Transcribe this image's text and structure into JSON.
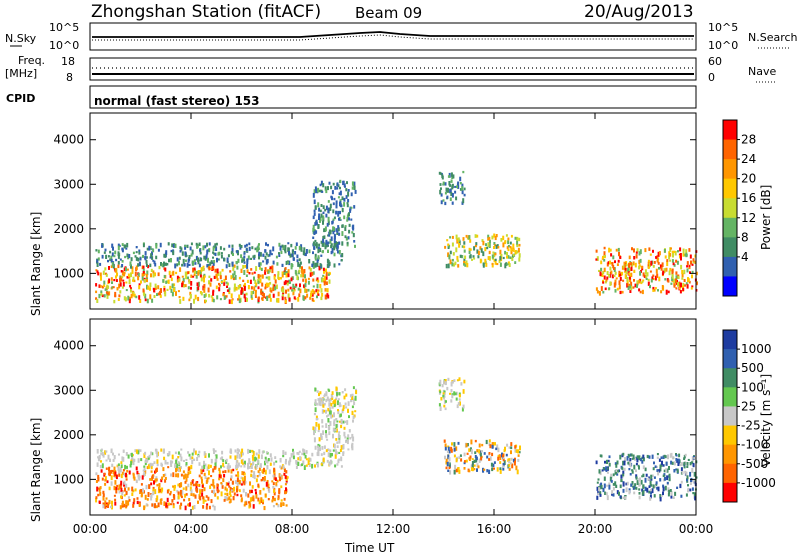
{
  "header": {
    "station": "Zhongshan Station (fitACF)",
    "beam": "Beam 09",
    "date": "20/Aug/2013"
  },
  "nsky_panel": {
    "left_label": "N.Sky",
    "right_label": "N.Search",
    "ticks_left": [
      "10^5",
      "10^0"
    ],
    "ticks_right": [
      "10^5",
      "10^0"
    ]
  },
  "freq_panel": {
    "left_label_1": "Freq.",
    "left_label_2": "[MHz]",
    "right_label": "Nave",
    "ticks_left": [
      "18",
      "8"
    ],
    "ticks_right": [
      "60",
      "0"
    ]
  },
  "cpid": {
    "label": "CPID",
    "text": "normal (fast stereo) 153"
  },
  "power_colorbar": {
    "label": "Power [dB]",
    "ticks": [
      "28",
      "24",
      "20",
      "16",
      "12",
      "8",
      "4"
    ],
    "colors": [
      "#ff0000",
      "#ff6400",
      "#ff9600",
      "#ffc800",
      "#c8dc32",
      "#64b464",
      "#408c64",
      "#3060b0",
      "#0000ff"
    ]
  },
  "velocity_colorbar": {
    "label": "Velocity [m s⁻¹]",
    "ticks": [
      "1000",
      "500",
      "100",
      "25",
      "-25",
      "-100",
      "-500",
      "-1000"
    ],
    "colors": [
      "#1e3ca0",
      "#3060b0",
      "#408c64",
      "#64c850",
      "#c8c8c8",
      "#ffc800",
      "#ff9600",
      "#ff6400",
      "#ff0000"
    ]
  },
  "chart_data": [
    {
      "type": "heatmap",
      "title": "Power",
      "xlabel": "Time UT",
      "ylabel": "Slant Range [km]",
      "x_ticks": [
        "00:00",
        "04:00",
        "08:00",
        "12:00",
        "16:00",
        "20:00",
        "00:00"
      ],
      "y_ticks": [
        1000,
        2000,
        3000,
        4000
      ],
      "ylim": [
        200,
        4600
      ],
      "xlim_hours": [
        0,
        24
      ],
      "regions": [
        {
          "t0": 0.2,
          "t1": 9.5,
          "r0": 400,
          "r1": 1200,
          "level": "high"
        },
        {
          "t0": 0.2,
          "t1": 10.0,
          "r0": 1200,
          "r1": 1700,
          "level": "low"
        },
        {
          "t0": 8.8,
          "t1": 10.5,
          "r0": 1600,
          "r1": 3100,
          "level": "low"
        },
        {
          "t0": 13.8,
          "t1": 14.8,
          "r0": 2600,
          "r1": 3300,
          "level": "low"
        },
        {
          "t0": 14.0,
          "t1": 17.0,
          "r0": 1200,
          "r1": 1900,
          "level": "mid"
        },
        {
          "t0": 20.0,
          "t1": 24.0,
          "r0": 600,
          "r1": 1600,
          "level": "high"
        }
      ]
    },
    {
      "type": "heatmap",
      "title": "Velocity",
      "xlabel": "Time UT",
      "ylabel": "Slant Range [km]",
      "x_ticks": [
        "00:00",
        "04:00",
        "08:00",
        "12:00",
        "16:00",
        "20:00",
        "00:00"
      ],
      "y_ticks": [
        1000,
        2000,
        3000,
        4000
      ],
      "ylim": [
        200,
        4600
      ],
      "xlim_hours": [
        0,
        24
      ],
      "regions": [
        {
          "t0": 0.2,
          "t1": 7.8,
          "r0": 400,
          "r1": 1300,
          "level": "negative"
        },
        {
          "t0": 0.2,
          "t1": 10.0,
          "r0": 1300,
          "r1": 1700,
          "level": "near-zero"
        },
        {
          "t0": 8.8,
          "t1": 10.5,
          "r0": 1600,
          "r1": 3100,
          "level": "near-zero"
        },
        {
          "t0": 13.8,
          "t1": 14.8,
          "r0": 2600,
          "r1": 3300,
          "level": "near-zero"
        },
        {
          "t0": 14.0,
          "t1": 17.0,
          "r0": 1200,
          "r1": 1900,
          "level": "mixed"
        },
        {
          "t0": 20.0,
          "t1": 24.0,
          "r0": 600,
          "r1": 1600,
          "level": "positive"
        }
      ]
    }
  ]
}
